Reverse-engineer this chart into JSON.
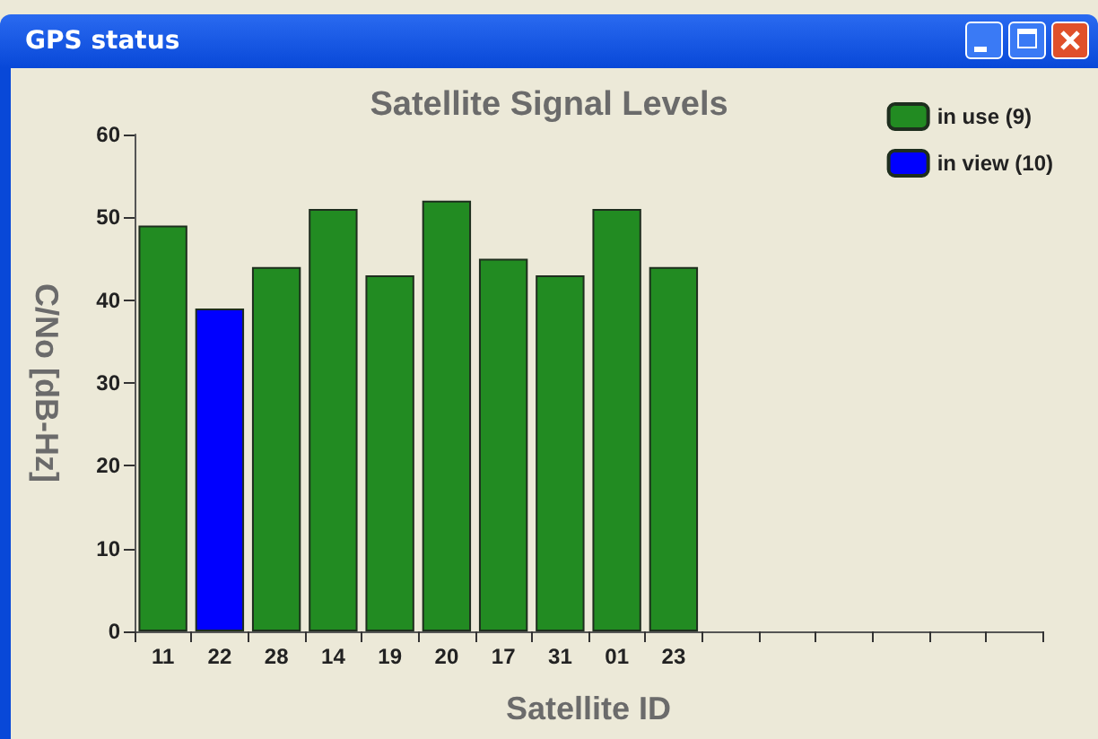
{
  "chart_data": {
    "type": "bar",
    "title": "Satellite Signal Levels",
    "xlabel": "Satellite ID",
    "ylabel": "C/No [dB-Hz]",
    "annotations": [
      "GPS status"
    ],
    "categories": [
      "11",
      "22",
      "28",
      "14",
      "19",
      "20",
      "17",
      "31",
      "01",
      "23",
      null,
      null,
      null,
      null,
      null,
      null
    ],
    "series": [
      {
        "name": "in use (9)",
        "color": "#228b22",
        "values": [
          49,
          null,
          44,
          51,
          43,
          52,
          45,
          43,
          51,
          44,
          null,
          null,
          null,
          null,
          null,
          null
        ]
      },
      {
        "name": "in view (10)",
        "color": "#0000ff",
        "values": [
          null,
          39,
          null,
          null,
          null,
          null,
          null,
          null,
          null,
          null,
          null,
          null,
          null,
          null,
          null,
          null
        ]
      }
    ],
    "stacked": true,
    "ylim": [
      0,
      60
    ],
    "yticks": [
      0,
      10,
      20,
      30,
      40,
      50,
      60
    ],
    "grid": false,
    "legend": "top right"
  }
}
